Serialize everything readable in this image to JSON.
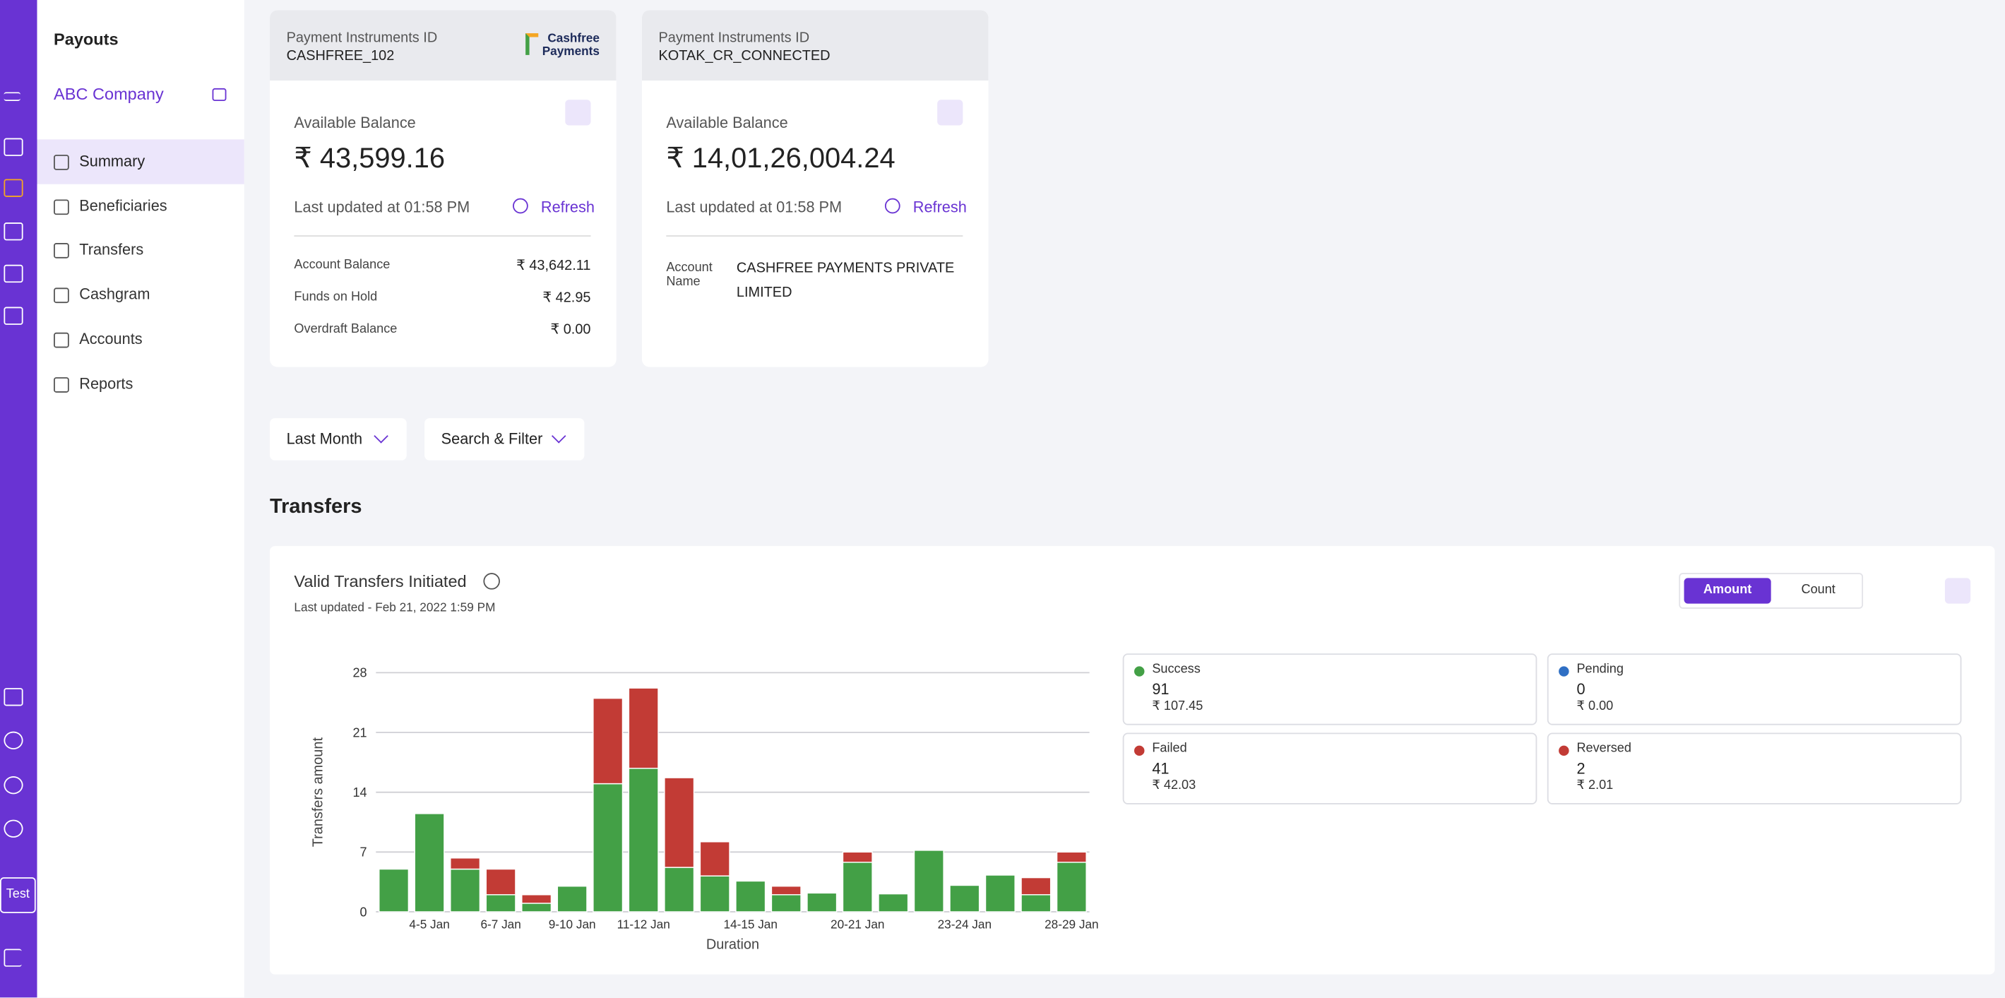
{
  "nav": {
    "title": "Payouts",
    "company": "ABC Company",
    "items": [
      "Summary",
      "Beneficiaries",
      "Transfers",
      "Cashgram",
      "Accounts",
      "Reports"
    ],
    "mode": "Test"
  },
  "cards": [
    {
      "label": "Payment Instruments ID",
      "id": "CASHFREE_102",
      "logo": [
        "Cashfree",
        "Payments"
      ],
      "balance_label": "Available Balance",
      "balance": "₹ 43,599.16",
      "updated": "Last updated at 01:58 PM",
      "refresh": "Refresh",
      "rows": [
        [
          "Account Balance",
          "₹ 43,642.11"
        ],
        [
          "Funds on Hold",
          "₹ 42.95"
        ],
        [
          "Overdraft Balance",
          "₹ 0.00"
        ]
      ]
    },
    {
      "label": "Payment Instruments ID",
      "id": "KOTAK_CR_CONNECTED",
      "balance_label": "Available Balance",
      "balance": "₹ 14,01,26,004.24",
      "updated": "Last updated at 01:58 PM",
      "refresh": "Refresh",
      "rows": [
        [
          "Account Name",
          "CASHFREE PAYMENTS PRIVATE LIMITED"
        ]
      ]
    }
  ],
  "filters": [
    "Last Month",
    "Search & Filter"
  ],
  "section_title": "Transfers",
  "panel": {
    "title": "Valid Transfers Initiated",
    "updated": "Last updated - Feb 21, 2022 1:59 PM",
    "toggle": [
      "Amount",
      "Count"
    ],
    "stats": [
      {
        "name": "Success",
        "count": "91",
        "amount": "₹ 107.45",
        "color": "#43a046"
      },
      {
        "name": "Pending",
        "count": "0",
        "amount": "₹ 0.00",
        "color": "#2f6fc4"
      },
      {
        "name": "Failed",
        "count": "41",
        "amount": "₹ 42.03",
        "color": "#c23b35"
      },
      {
        "name": "Reversed",
        "count": "2",
        "amount": "₹ 2.01",
        "color": "#c23b35"
      }
    ]
  },
  "chart_data": {
    "type": "stacked_bar",
    "categories": [
      null,
      "4-5 Jan",
      null,
      "6-7 Jan",
      null,
      "9-10 Jan",
      null,
      "11-12 Jan",
      null,
      null,
      "14-15 Jan",
      null,
      null,
      "20-21 Jan",
      null,
      null,
      "23-24 Jan",
      null,
      null,
      "28-29 Jan"
    ],
    "series": [
      {
        "color": "#43a046",
        "values": [
          5,
          11.5,
          5,
          2,
          1,
          3,
          15,
          16.8,
          5.2,
          4.2,
          3.6,
          2,
          2.2,
          5.8,
          2.1,
          7.2,
          3.1,
          4.3,
          2,
          5.8
        ]
      },
      {
        "color": "#c23b35",
        "values": [
          0,
          0,
          1.3,
          3,
          1,
          0,
          10,
          9.4,
          10.5,
          4,
          0,
          1,
          0,
          1.2,
          0,
          0,
          0,
          0,
          2,
          1.2
        ]
      }
    ],
    "xlabel": "Duration",
    "ylabel": "Transfers amount",
    "ylim": [
      0,
      28
    ],
    "yticks": [
      0,
      7,
      14,
      21,
      28
    ],
    "grid": true
  }
}
